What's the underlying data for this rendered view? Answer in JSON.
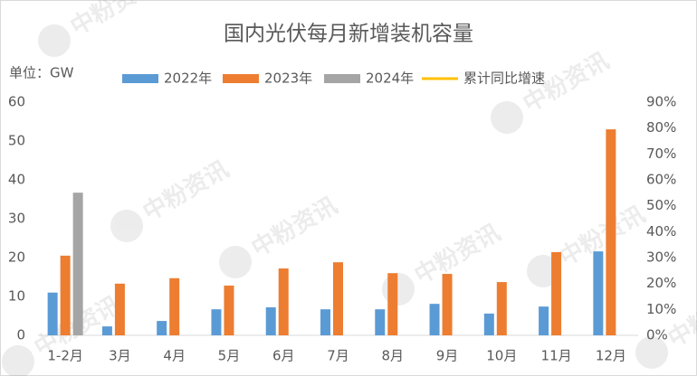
{
  "chart_data": {
    "type": "bar",
    "title": "国内光伏每月新增装机容量",
    "y_label": "单位：GW",
    "watermark": "中粉资讯",
    "categories": [
      "1-2月",
      "3月",
      "4月",
      "5月",
      "6月",
      "7月",
      "8月",
      "9月",
      "10月",
      "11月",
      "12月"
    ],
    "series": [
      {
        "name": "2022年",
        "color": "#5b9bd5",
        "values": [
          11,
          2.3,
          3.7,
          6.7,
          7.2,
          6.7,
          6.7,
          8.1,
          5.6,
          7.4,
          21.6
        ]
      },
      {
        "name": "2023年",
        "color": "#ed7d31",
        "values": [
          20.5,
          13.3,
          14.7,
          12.8,
          17.2,
          18.8,
          16,
          15.8,
          13.7,
          21.4,
          53
        ]
      },
      {
        "name": "2024年",
        "color": "#a5a5a5",
        "values": [
          36.7,
          null,
          null,
          null,
          null,
          null,
          null,
          null,
          null,
          null,
          null
        ]
      },
      {
        "name": "累计同比增速",
        "color": "#ffc000",
        "type": "line",
        "axis": "y2",
        "values": [
          null,
          null,
          null,
          null,
          null,
          null,
          null,
          null,
          null,
          null,
          null
        ]
      }
    ],
    "ylim": [
      0,
      60
    ],
    "yticks": [
      0,
      10,
      20,
      30,
      40,
      50,
      60
    ],
    "y2lim": [
      0,
      90
    ],
    "y2ticks": [
      {
        "value": 0,
        "label": "0%"
      },
      {
        "value": 10,
        "label": "10%"
      },
      {
        "value": 20,
        "label": "20%"
      },
      {
        "value": 30,
        "label": "30%"
      },
      {
        "value": 40,
        "label": "40%"
      },
      {
        "value": 50,
        "label": "50%"
      },
      {
        "value": 60,
        "label": "60%"
      },
      {
        "value": 70,
        "label": "70%"
      },
      {
        "value": 80,
        "label": "80%"
      },
      {
        "value": 90,
        "label": "90%"
      }
    ],
    "grid": false,
    "legend": "top"
  }
}
